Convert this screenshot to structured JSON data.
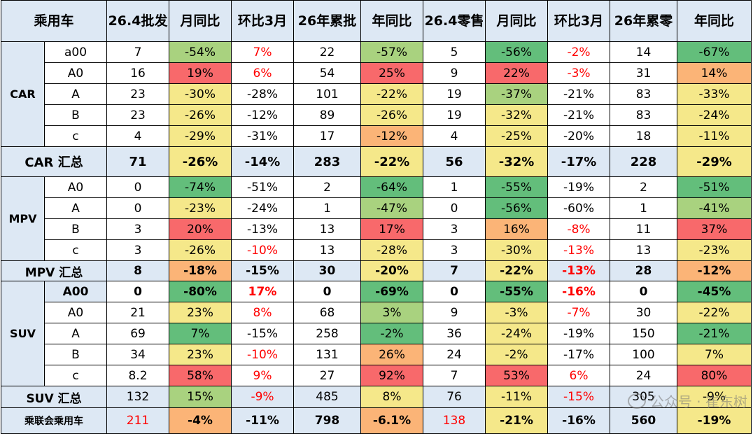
{
  "headers": [
    "乘用车",
    "26.4批发",
    "月同比",
    "环比3月",
    "26年累批",
    "年同比",
    "26.4零售",
    "月同比",
    "环比3月",
    "26年累零",
    "年同比"
  ],
  "groups": [
    {
      "name": "CAR",
      "rows": [
        {
          "seg": "a00",
          "cells": [
            "7",
            "-54%",
            "7%",
            "22",
            "-57%",
            "5",
            "-56%",
            "-2%",
            "14",
            "-67%"
          ]
        },
        {
          "seg": "A0",
          "cells": [
            "16",
            "19%",
            "6%",
            "54",
            "25%",
            "9",
            "22%",
            "-3%",
            "31",
            "14%"
          ]
        },
        {
          "seg": "A",
          "cells": [
            "23",
            "-30%",
            "-28%",
            "101",
            "-22%",
            "19",
            "-37%",
            "-21%",
            "83",
            "-33%"
          ]
        },
        {
          "seg": "B",
          "cells": [
            "23",
            "-26%",
            "-12%",
            "89",
            "-26%",
            "19",
            "-32%",
            "-21%",
            "83",
            "-24%"
          ]
        },
        {
          "seg": "c",
          "cells": [
            "4",
            "-29%",
            "-31%",
            "17",
            "-12%",
            "4",
            "-25%",
            "-20%",
            "18",
            "-11%"
          ]
        }
      ],
      "summary": {
        "label": "CAR 汇总",
        "cells": [
          "71",
          "-26%",
          "-14%",
          "283",
          "-22%",
          "56",
          "-32%",
          "-17%",
          "228",
          "-29%"
        ]
      }
    },
    {
      "name": "MPV",
      "rows": [
        {
          "seg": "A0",
          "cells": [
            "0",
            "-74%",
            "-51%",
            "2",
            "-64%",
            "1",
            "-55%",
            "-19%",
            "2",
            "-51%"
          ]
        },
        {
          "seg": "A",
          "cells": [
            "0",
            "-23%",
            "-24%",
            "1",
            "-47%",
            "0",
            "-56%",
            "-60%",
            "1",
            "-41%"
          ]
        },
        {
          "seg": "B",
          "cells": [
            "3",
            "20%",
            "-13%",
            "13",
            "17%",
            "3",
            "16%",
            "-8%",
            "11",
            "37%"
          ]
        },
        {
          "seg": "c",
          "cells": [
            "3",
            "-26%",
            "-10%",
            "13",
            "-28%",
            "3",
            "-30%",
            "-13%",
            "13",
            "-23%"
          ]
        }
      ],
      "summary": {
        "label": "MPV 汇总",
        "cells": [
          "8",
          "-18%",
          "-15%",
          "30",
          "-20%",
          "7",
          "-22%",
          "-13%",
          "28",
          "-12%"
        ]
      }
    },
    {
      "name": "SUV",
      "rows": [
        {
          "seg": "A00",
          "cells": [
            "0",
            "-80%",
            "17%",
            "0",
            "-69%",
            "0",
            "-55%",
            "-16%",
            "0",
            "-45%"
          ]
        },
        {
          "seg": "A0",
          "cells": [
            "21",
            "23%",
            "8%",
            "68",
            "3%",
            "9",
            "-3%",
            "-7%",
            "30",
            "-22%"
          ]
        },
        {
          "seg": "A",
          "cells": [
            "69",
            "7%",
            "-15%",
            "258",
            "-2%",
            "36",
            "-24%",
            "-19%",
            "150",
            "-21%"
          ]
        },
        {
          "seg": "B",
          "cells": [
            "34",
            "23%",
            "-10%",
            "131",
            "26%",
            "24",
            "-2%",
            "-17%",
            "100",
            "7%"
          ]
        },
        {
          "seg": "c",
          "cells": [
            "8.2",
            "58%",
            "9%",
            "27",
            "92%",
            "7",
            "53%",
            "6%",
            "24",
            "80%"
          ]
        }
      ],
      "summary": {
        "label": "SUV 汇总",
        "cells": [
          "132",
          "15%",
          "-9%",
          "485",
          "8%",
          "76",
          "-11%",
          "-15%",
          "305",
          "-9%"
        ]
      }
    }
  ],
  "total": {
    "label": "乘联会乘用车",
    "cells": [
      "211",
      "-4%",
      "-11%",
      "798",
      "-6.1%",
      "138",
      "-21%",
      "-16%",
      "560",
      "-19%"
    ]
  },
  "watermark": {
    "text": "公众号 · 崔东树"
  },
  "colors": {
    "header_bg": "#dde8f4",
    "red_text": "#ff0000",
    "heat_dark_green": "#63be7b",
    "heat_light_green": "#a9d27f",
    "heat_yellow": "#f5e88a",
    "heat_orange": "#fbb477",
    "heat_red": "#f8696b"
  }
}
